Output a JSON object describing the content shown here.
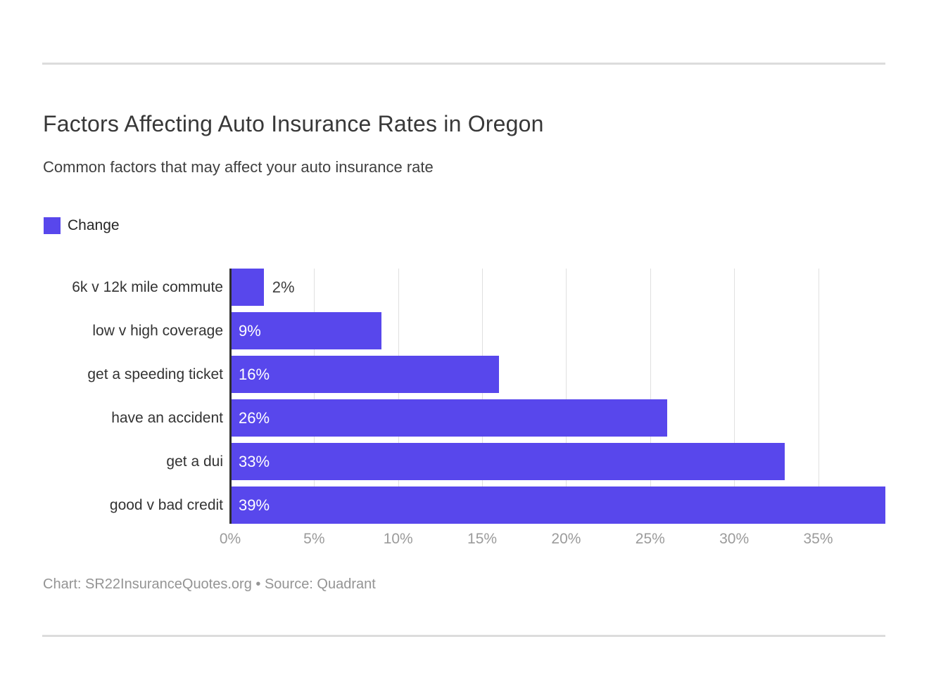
{
  "header": {
    "title": "Factors Affecting Auto Insurance Rates in Oregon",
    "subtitle": "Common factors that may affect your auto insurance rate"
  },
  "legend": {
    "label": "Change"
  },
  "colors": {
    "accent": "#5847EC",
    "axis_line": "#2f2f2f",
    "gridline": "#e0e0e0",
    "divider": "#dcdcdc"
  },
  "chart_data": {
    "type": "bar",
    "orientation": "horizontal",
    "title": "Factors Affecting Auto Insurance Rates in Oregon",
    "subtitle": "Common factors that may affect your auto insurance rate",
    "series_name": "Change",
    "categories": [
      "6k v 12k mile commute",
      "low v high coverage",
      "get a speeding ticket",
      "have an accident",
      "get a dui",
      "good v bad credit"
    ],
    "values": [
      2,
      9,
      16,
      26,
      33,
      39
    ],
    "value_labels": [
      "2%",
      "9%",
      "16%",
      "26%",
      "33%",
      "39%"
    ],
    "x_ticks": [
      {
        "value": 0,
        "label": "0%"
      },
      {
        "value": 5,
        "label": "5%"
      },
      {
        "value": 10,
        "label": "10%"
      },
      {
        "value": 15,
        "label": "15%"
      },
      {
        "value": 20,
        "label": "20%"
      },
      {
        "value": 25,
        "label": "25%"
      },
      {
        "value": 30,
        "label": "30%"
      },
      {
        "value": 35,
        "label": "35%"
      }
    ],
    "xlim": [
      0,
      39
    ],
    "xlabel": "",
    "ylabel": "",
    "grid": true,
    "legend_position": "top-left",
    "bar_color": "#5847EC"
  },
  "footer": {
    "text": "Chart: SR22InsuranceQuotes.org • Source: Quadrant"
  }
}
